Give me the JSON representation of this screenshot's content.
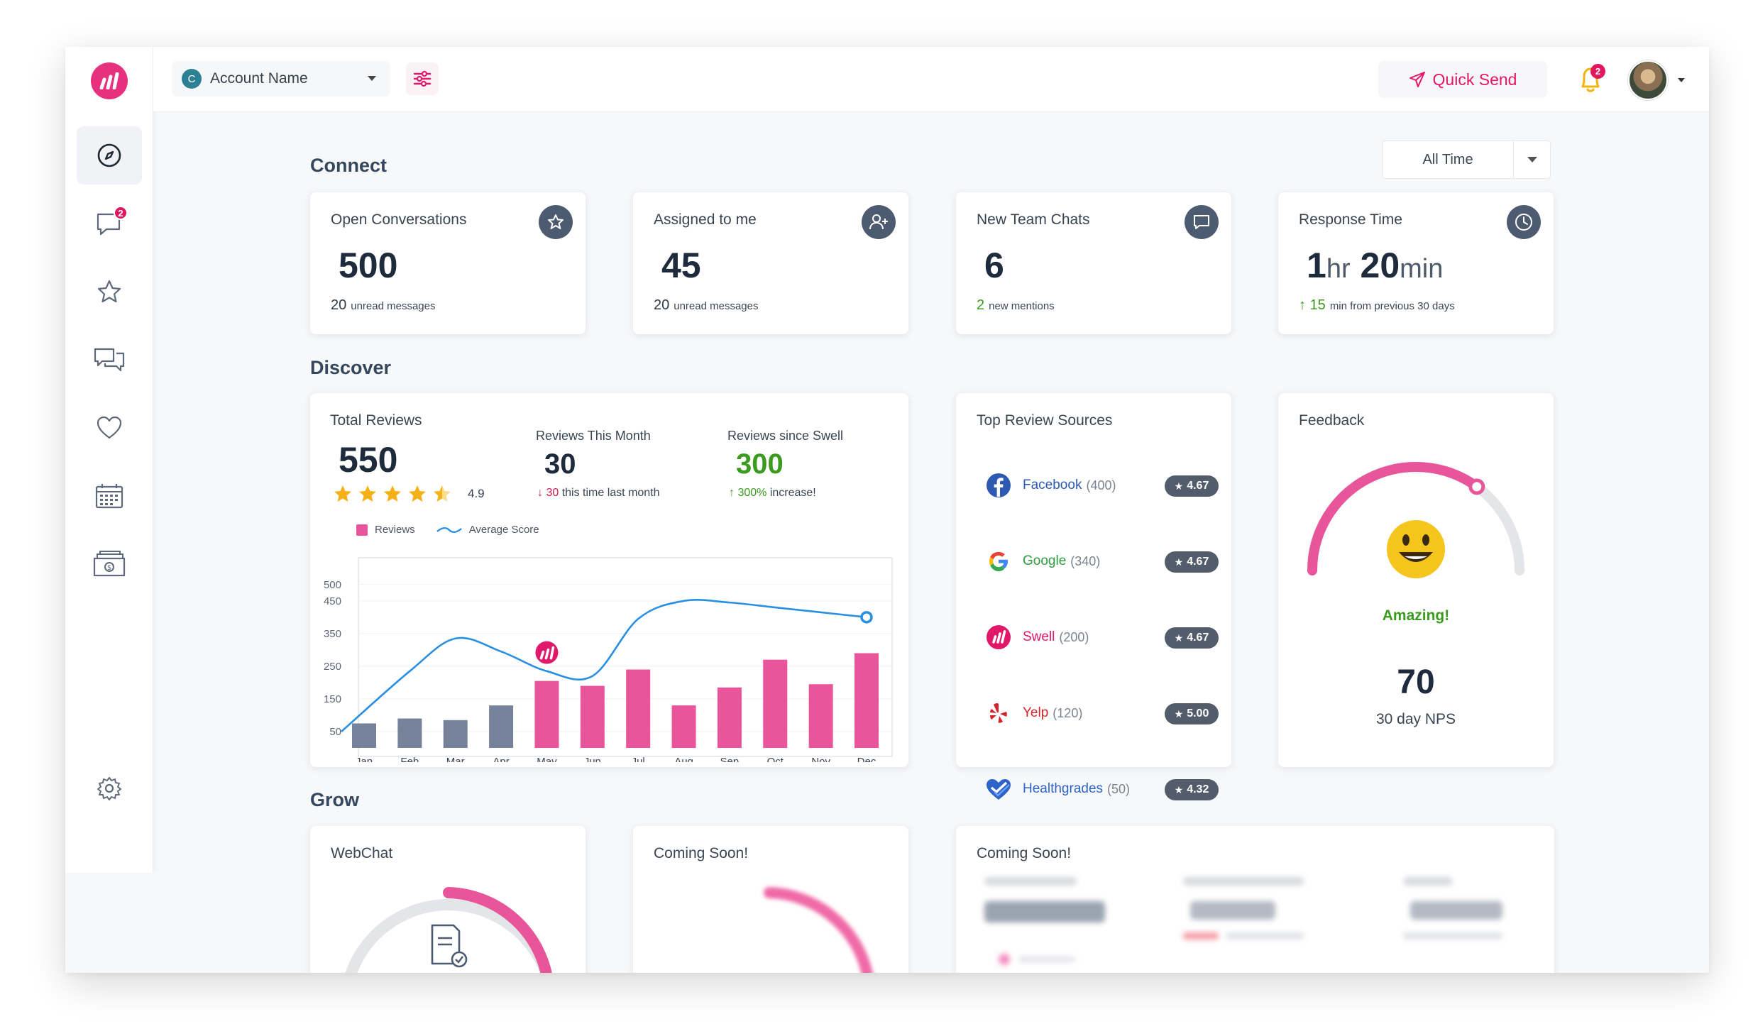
{
  "topbar": {
    "account_initial": "C",
    "account_name": "Account Name",
    "quick_send_label": "Quick Send",
    "notifications_count": "2"
  },
  "sidebar": {
    "messages_badge": "2",
    "items": [
      "dashboard",
      "conversations",
      "reviews",
      "team-chat",
      "feedback",
      "calendar",
      "payments",
      "settings"
    ]
  },
  "filter": {
    "range": "All Time"
  },
  "sections": {
    "connect": "Connect",
    "discover": "Discover",
    "grow": "Grow"
  },
  "connect": [
    {
      "title": "Open Conversations",
      "value": "500",
      "sub_value": "20",
      "sub_text": "unread messages",
      "icon": "star-icon"
    },
    {
      "title": "Assigned to me",
      "value": "45",
      "sub_value": "20",
      "sub_text": "unread messages",
      "icon": "add-user-icon"
    },
    {
      "title": "New Team Chats",
      "value": "6",
      "sub_value": "2",
      "sub_text": "new mentions",
      "icon": "chat-bubble-icon"
    },
    {
      "title": "Response Time",
      "value_hr": "1",
      "unit_hr": "hr",
      "value_min": "20",
      "unit_min": "min",
      "sub_value": "15",
      "sub_text": "min from previous 30 days",
      "icon": "clock-icon"
    }
  ],
  "reviews": {
    "title": "Total Reviews",
    "total": "550",
    "rating": "4.9",
    "stars": 4.5,
    "this_month_title": "Reviews This Month",
    "this_month": "30",
    "this_month_change": "30",
    "this_month_change_text": "this time last month",
    "since_title": "Reviews since Swell",
    "since": "300",
    "since_change": "300%",
    "since_change_text": "increase!",
    "legend_reviews": "Reviews",
    "legend_score": "Average Score"
  },
  "chart_data": {
    "type": "bar",
    "categories": [
      "Jan",
      "Feb",
      "Mar",
      "Apr",
      "May",
      "Jun",
      "Jul",
      "Aug",
      "Sep",
      "Oct",
      "Nov",
      "Dec"
    ],
    "series": [
      {
        "name": "Reviews",
        "values": [
          75,
          90,
          85,
          130,
          205,
          190,
          240,
          130,
          185,
          270,
          195,
          290
        ]
      },
      {
        "name": "Average Score",
        "values": [
          50,
          235,
          335,
          295,
          235,
          220,
          395,
          450,
          445,
          430,
          415,
          400
        ]
      }
    ],
    "bar_colors": [
      "#75829a",
      "#75829a",
      "#75829a",
      "#75829a",
      "#e9559b",
      "#e9559b",
      "#e9559b",
      "#e9559b",
      "#e9559b",
      "#e9559b",
      "#e9559b",
      "#e9559b"
    ],
    "yticks": [
      "500",
      "450",
      "350",
      "250",
      "150",
      "50"
    ],
    "ylim": [
      0,
      530
    ],
    "line_color": "#2a8fe0"
  },
  "sources": {
    "title": "Top Review Sources",
    "items": [
      {
        "name": "Facebook",
        "count": "(400)",
        "rating": "4.67",
        "color": "#2d59b3",
        "icon": "facebook-icon"
      },
      {
        "name": "Google",
        "count": "(340)",
        "rating": "4.67",
        "color": "#2e9b3e",
        "icon": "google-icon"
      },
      {
        "name": "Swell",
        "count": "(200)",
        "rating": "4.67",
        "color": "#e1176a",
        "icon": "swell-icon"
      },
      {
        "name": "Yelp",
        "count": "(120)",
        "rating": "5.00",
        "color": "#d3232a",
        "icon": "yelp-icon"
      },
      {
        "name": "Healthgrades",
        "count": "(50)",
        "rating": "4.32",
        "color": "#2e64c8",
        "icon": "healthgrades-icon"
      }
    ]
  },
  "feedback": {
    "title": "Feedback",
    "mood": "Amazing!",
    "nps": "70",
    "nps_label": "30 day NPS",
    "gauge_fraction": 0.7
  },
  "grow": [
    {
      "title": "WebChat"
    },
    {
      "title": "Coming Soon!"
    },
    {
      "title": "Coming Soon!"
    }
  ]
}
